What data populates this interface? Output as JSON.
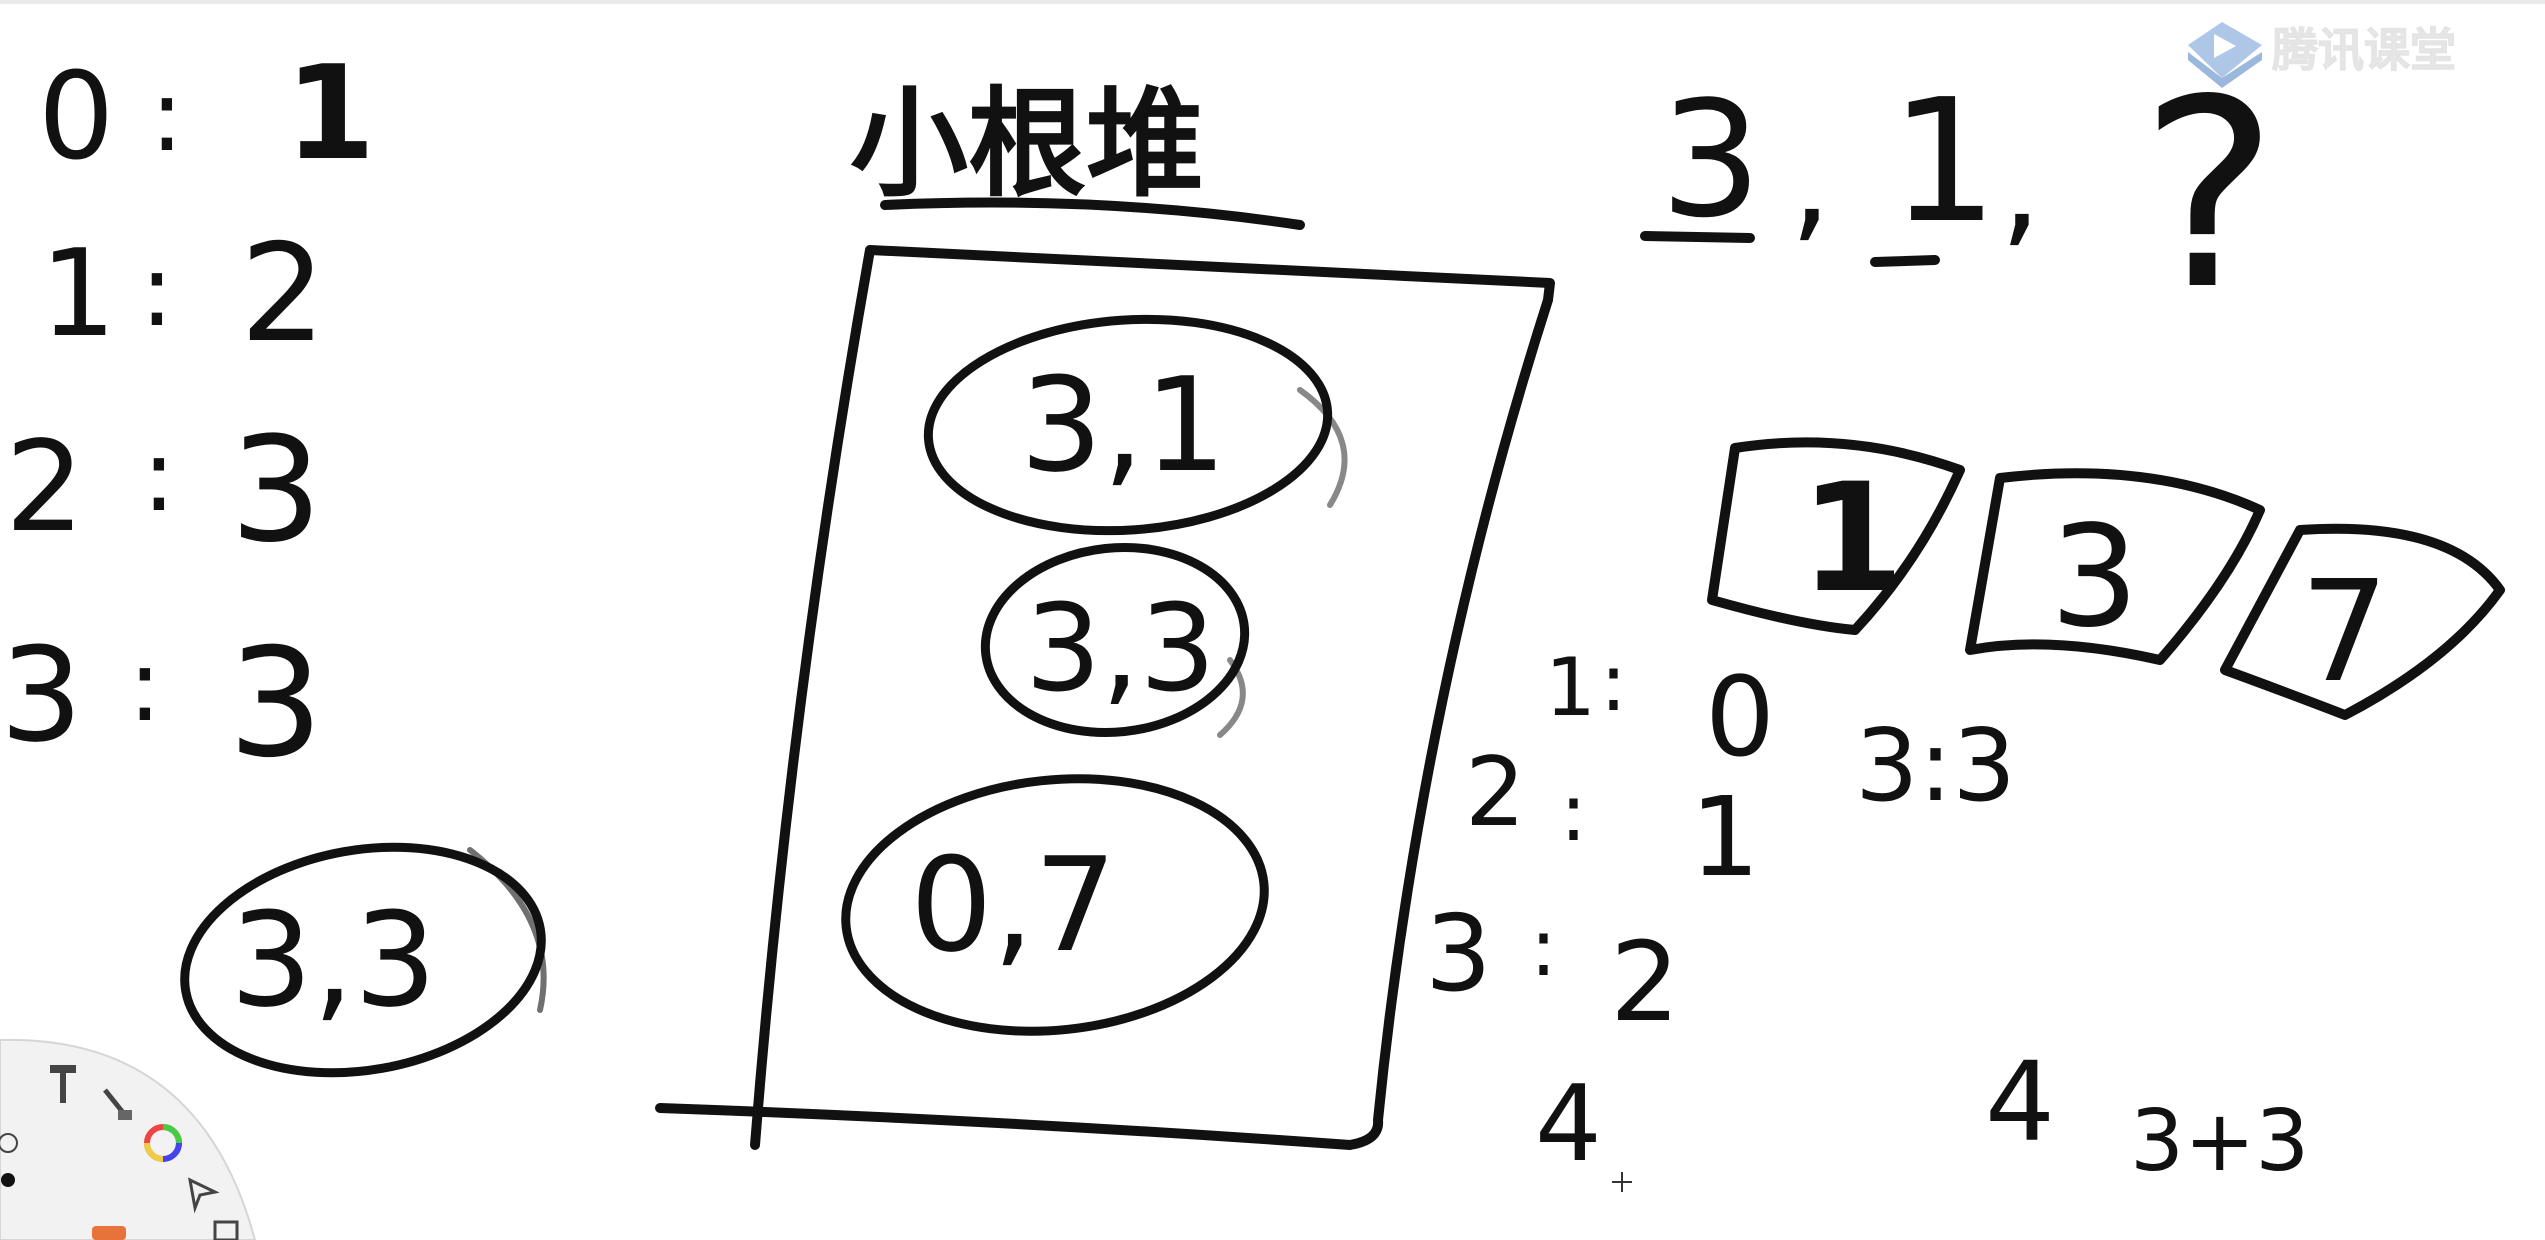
{
  "brand": {
    "logo_text": "腾讯课堂",
    "play_icon": "play-icon"
  },
  "left_list": [
    {
      "key": "0",
      "val": "1"
    },
    {
      "key": "1",
      "val": "2"
    },
    {
      "key": "2",
      "val": "3"
    },
    {
      "key": "3",
      "val": "3"
    }
  ],
  "left_circle": "3,3",
  "heap": {
    "title": "小根堆",
    "nodes": [
      "3,1",
      "3,3",
      "0,7"
    ]
  },
  "sequence": {
    "a": "3",
    "b": "1",
    "c": "?"
  },
  "boxes": [
    "1",
    "3",
    "7"
  ],
  "mid_list": [
    {
      "key": "1",
      "val": "0"
    },
    {
      "key": "2",
      "val": "1"
    },
    {
      "key": "3",
      "val": "2"
    },
    {
      "key": "4",
      "val": ""
    }
  ],
  "notes": {
    "n1": "3:3",
    "n2": "4",
    "n3": "3+3"
  },
  "toolbar": {
    "tools": [
      "hammer-icon",
      "brush-icon",
      "color-wheel-icon",
      "pointer-icon",
      "pen-icon",
      "dot-icon",
      "eraser-icon",
      "copy-icon"
    ]
  },
  "colors": {
    "ink": "#111111",
    "logo_blue": "#4a7fc1",
    "logo_gray": "#d8d8d8"
  }
}
